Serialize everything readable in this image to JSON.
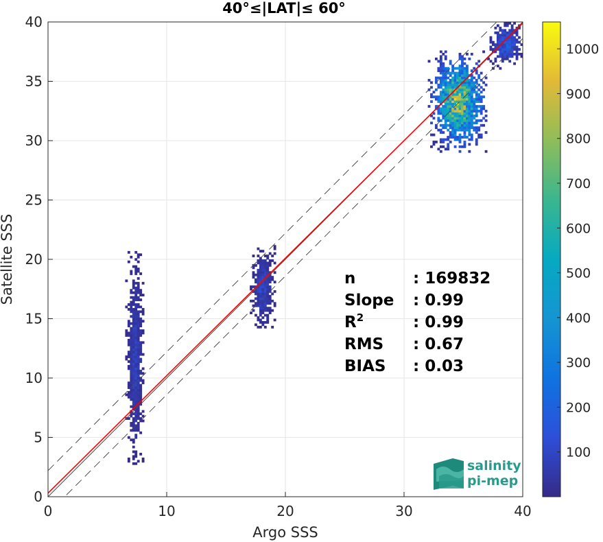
{
  "chart_data": {
    "type": "heatmap",
    "title": "40°≤|LAT|≤ 60°",
    "xlabel": "Argo SSS",
    "ylabel": "Satellite SSS",
    "xlim": [
      0,
      40
    ],
    "ylim": [
      0,
      40
    ],
    "x_ticks": [
      0,
      10,
      20,
      30,
      40
    ],
    "y_ticks": [
      0,
      5,
      10,
      15,
      20,
      25,
      30,
      35,
      40
    ],
    "grid": true,
    "colorbar": {
      "range": [
        0,
        1060
      ],
      "ticks": [
        100,
        200,
        300,
        400,
        500,
        600,
        700,
        800,
        900,
        1000
      ],
      "colormap": "parula"
    },
    "density_clusters": [
      {
        "x": [
          6.5,
          8.0
        ],
        "y": [
          2.5,
          20.5
        ],
        "peak_count": 120
      },
      {
        "x": [
          17.0,
          19.0
        ],
        "y": [
          14.0,
          21.0
        ],
        "peak_count": 150
      },
      {
        "x": [
          32.0,
          37.0
        ],
        "y": [
          29.0,
          37.5
        ],
        "peak_count": 1060
      },
      {
        "x": [
          37.0,
          40.0
        ],
        "y": [
          36.0,
          40.0
        ],
        "peak_count": 250
      }
    ],
    "lines": [
      {
        "kind": "one-to-one",
        "color": "#4d4d4d",
        "style": "solid",
        "from": [
          0,
          0
        ],
        "to": [
          40,
          40
        ]
      },
      {
        "kind": "regression",
        "color": "#ff0000",
        "style": "solid",
        "from": [
          0,
          0.3
        ],
        "to": [
          40,
          39.9
        ]
      },
      {
        "kind": "upper-bound",
        "color": "#4d4d4d",
        "style": "dashed",
        "from": [
          0,
          2.2
        ],
        "to": [
          40,
          42.2
        ]
      },
      {
        "kind": "lower-bound",
        "color": "#4d4d4d",
        "style": "dashed",
        "from": [
          0,
          -1.4
        ],
        "to": [
          40,
          38.6
        ]
      }
    ],
    "statistics": [
      {
        "label": "n",
        "sep": ": ",
        "value": "169832"
      },
      {
        "label": "Slope",
        "sep": ": ",
        "value": "0.99"
      },
      {
        "label": "R",
        "sup": "2",
        "sep": ": ",
        "value": "0.99"
      },
      {
        "label": "RMS",
        "sep": ": ",
        "value": "0.67"
      },
      {
        "label": "BIAS",
        "sep": ": ",
        "value": "0.03"
      }
    ]
  },
  "logo": {
    "line1": "salinity",
    "line2": "pi-mep",
    "color": "#2a9a8c"
  }
}
